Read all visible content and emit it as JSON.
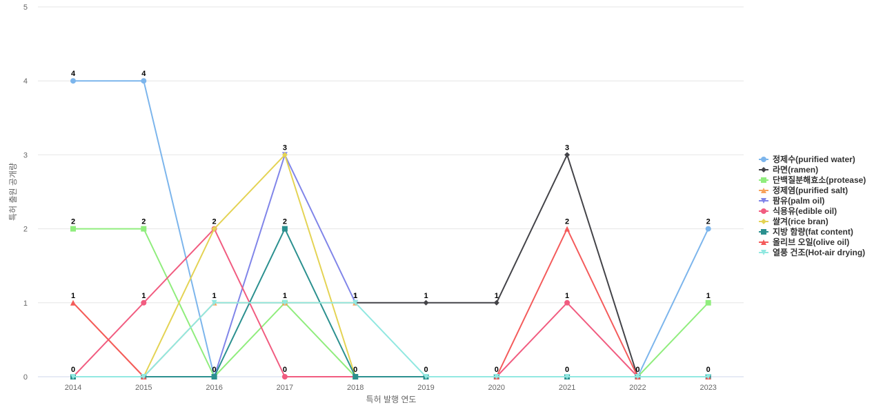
{
  "chart_data": {
    "type": "line",
    "title": "",
    "xlabel": "특허 발행 연도",
    "ylabel": "특허 출원 공개량",
    "ylim": [
      0,
      5
    ],
    "y_ticks": [
      "0",
      "1",
      "2",
      "3",
      "4",
      "5"
    ],
    "grid": true,
    "legend_position": "right",
    "categories": [
      "2014",
      "2015",
      "2016",
      "2017",
      "2018",
      "2019",
      "2020",
      "2021",
      "2022",
      "2023"
    ],
    "series": [
      {
        "name": "정제수(purified water)",
        "color": "#7cb5ec",
        "marker": "circle",
        "values": [
          4,
          4,
          0,
          null,
          null,
          null,
          null,
          null,
          0,
          2
        ],
        "labels": [
          4,
          4,
          0,
          null,
          null,
          null,
          null,
          null,
          0,
          2
        ]
      },
      {
        "name": "라면(ramen)",
        "color": "#434348",
        "marker": "diamond",
        "values": [
          null,
          null,
          null,
          null,
          1,
          1,
          1,
          3,
          0,
          null
        ],
        "labels": [
          null,
          null,
          null,
          null,
          1,
          1,
          1,
          3,
          null,
          null
        ]
      },
      {
        "name": "단백질분해효소(protease)",
        "color": "#90ed7d",
        "marker": "square",
        "values": [
          2,
          2,
          0,
          1,
          0,
          null,
          null,
          null,
          0,
          1
        ],
        "labels": [
          2,
          2,
          null,
          null,
          null,
          null,
          null,
          null,
          null,
          1
        ]
      },
      {
        "name": "정제염(purified salt)",
        "color": "#f7a35c",
        "marker": "triangle",
        "values": [
          1,
          0,
          1,
          1,
          1,
          null,
          null,
          null,
          null,
          null
        ],
        "labels": [
          null,
          null,
          null,
          null,
          null,
          null,
          null,
          null,
          null,
          null
        ]
      },
      {
        "name": "팜유(palm oil)",
        "color": "#8085e9",
        "marker": "triangle-down",
        "values": [
          null,
          null,
          0,
          3,
          1,
          null,
          null,
          null,
          null,
          null
        ],
        "labels": [
          null,
          null,
          null,
          null,
          null,
          null,
          null,
          null,
          null,
          null
        ]
      },
      {
        "name": "식용유(edible oil)",
        "color": "#f15c80",
        "marker": "circle",
        "values": [
          0,
          1,
          2,
          0,
          0,
          0,
          0,
          1,
          0,
          null
        ],
        "labels": [
          0,
          1,
          2,
          0,
          null,
          null,
          0,
          1,
          null,
          null
        ]
      },
      {
        "name": "쌀겨(rice bran)",
        "color": "#e4d354",
        "marker": "diamond",
        "values": [
          null,
          0,
          2,
          3,
          0,
          null,
          null,
          null,
          null,
          null
        ],
        "labels": [
          null,
          null,
          null,
          3,
          null,
          null,
          null,
          null,
          null,
          null
        ]
      },
      {
        "name": "지방 함량(fat content)",
        "color": "#2b908f",
        "marker": "square",
        "values": [
          0,
          0,
          0,
          2,
          0,
          0,
          0,
          0,
          0,
          0
        ],
        "labels": [
          null,
          null,
          null,
          2,
          0,
          0,
          null,
          0,
          null,
          0
        ]
      },
      {
        "name": "올리브 오일(olive oil)",
        "color": "#f45b5b",
        "marker": "triangle",
        "values": [
          1,
          0,
          null,
          null,
          null,
          null,
          0,
          2,
          0,
          0
        ],
        "labels": [
          1,
          null,
          null,
          null,
          null,
          null,
          null,
          2,
          null,
          null
        ]
      },
      {
        "name": "열풍 건조(Hot-air drying)",
        "color": "#91e8e1",
        "marker": "triangle-down",
        "values": [
          0,
          0,
          1,
          1,
          1,
          0,
          0,
          0,
          0,
          0
        ],
        "labels": [
          null,
          null,
          1,
          1,
          1,
          null,
          null,
          null,
          null,
          null
        ]
      }
    ]
  }
}
